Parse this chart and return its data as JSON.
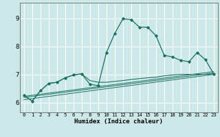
{
  "xlabel": "Humidex (Indice chaleur)",
  "bg_color": "#cde8e8",
  "grid_color": "#ffffff",
  "line_color": "#1a7060",
  "xlim": [
    -0.5,
    23.5
  ],
  "ylim": [
    5.65,
    9.55
  ],
  "yticks": [
    6,
    7,
    8,
    9
  ],
  "xticks": [
    0,
    1,
    2,
    3,
    4,
    5,
    6,
    7,
    8,
    9,
    10,
    11,
    12,
    13,
    14,
    15,
    16,
    17,
    18,
    19,
    20,
    21,
    22,
    23
  ],
  "series_main_x": [
    0,
    1,
    2,
    3,
    4,
    5,
    6,
    7,
    8,
    9,
    10,
    11,
    12,
    13,
    14,
    15,
    16,
    17,
    18,
    19,
    20,
    21,
    22,
    23
  ],
  "series_main_y": [
    6.25,
    6.05,
    6.42,
    6.68,
    6.72,
    6.88,
    6.98,
    7.02,
    6.65,
    6.6,
    7.78,
    8.45,
    8.98,
    8.95,
    8.68,
    8.68,
    8.38,
    7.68,
    7.62,
    7.5,
    7.45,
    7.78,
    7.52,
    7.02
  ],
  "line1_x": [
    0,
    23
  ],
  "line1_y": [
    6.18,
    7.05
  ],
  "line2_x": [
    0,
    23
  ],
  "line2_y": [
    6.22,
    7.1
  ],
  "line3_x": [
    0,
    23
  ],
  "line3_y": [
    6.1,
    7.0
  ],
  "series_lower_x": [
    0,
    1,
    2,
    3,
    4,
    5,
    6,
    7,
    8,
    9,
    10,
    11,
    12,
    13,
    14,
    15,
    16,
    17,
    18,
    19,
    20,
    21,
    22,
    23
  ],
  "series_lower_y": [
    6.25,
    6.05,
    6.42,
    6.68,
    6.72,
    6.88,
    6.98,
    7.02,
    6.78,
    6.72,
    6.72,
    6.75,
    6.78,
    6.82,
    6.85,
    6.88,
    6.9,
    6.95,
    6.98,
    7.0,
    7.0,
    7.0,
    7.0,
    7.02
  ]
}
